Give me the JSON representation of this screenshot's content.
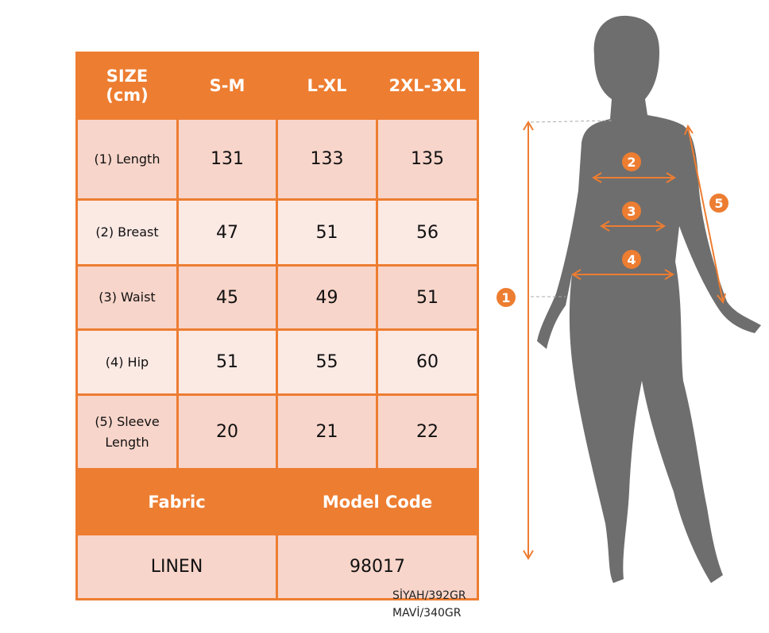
{
  "size_table": {
    "header": [
      "SIZE (cm)",
      "S-M",
      "L-XL",
      "2XL-3XL"
    ],
    "rows": [
      {
        "label": "(1) Length",
        "values": [
          "131",
          "133",
          "135"
        ]
      },
      {
        "label": "(2) Breast",
        "values": [
          "47",
          "51",
          "56"
        ]
      },
      {
        "label": "(3) Waist",
        "values": [
          "45",
          "49",
          "51"
        ]
      },
      {
        "label": "(4) Hip",
        "values": [
          "51",
          "55",
          "60"
        ]
      },
      {
        "label": "(5) Sleeve Length",
        "values": [
          "20",
          "21",
          "22"
        ]
      }
    ],
    "footer_header": [
      "Fabric",
      "Model Code"
    ],
    "footer_values": [
      "LINEN",
      "98017"
    ]
  },
  "weights": [
    "SİYAH/392GR",
    "MAVİ/340GR"
  ],
  "markers": [
    "1",
    "2",
    "3",
    "4",
    "5"
  ],
  "colors": {
    "accent": "#ed7d31",
    "row": "#f8d5ca",
    "row_alt": "#fbe9e4",
    "silhouette": "#6e6e6e"
  }
}
